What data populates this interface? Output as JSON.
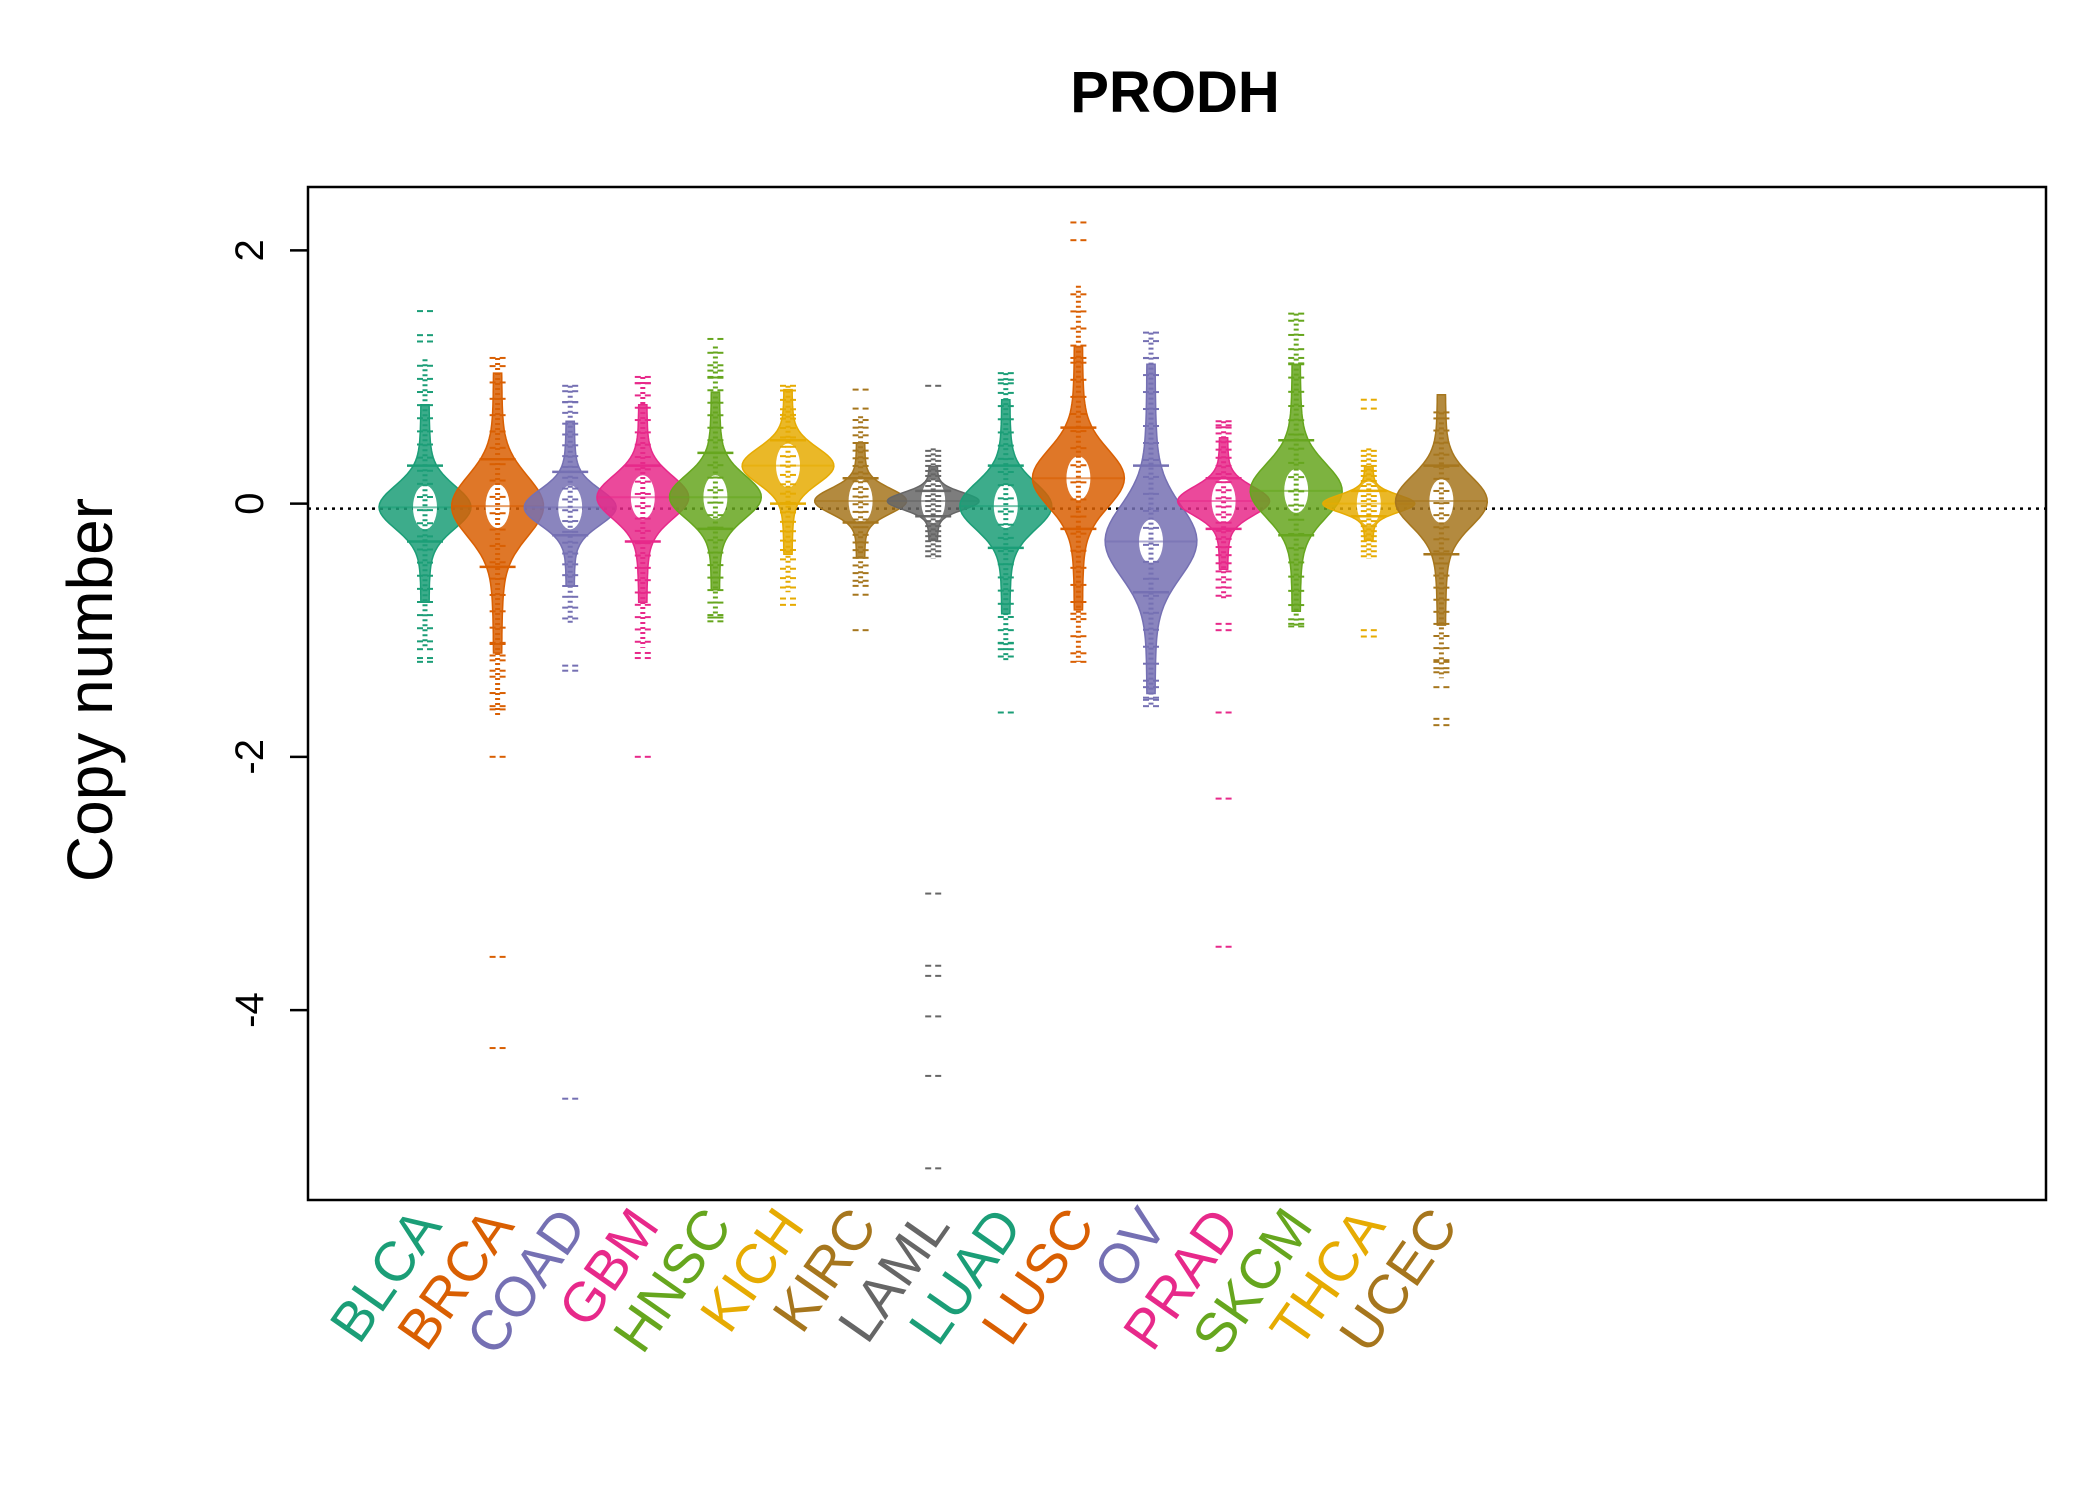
{
  "chart_data": {
    "type": "beanplot",
    "title": "PRODH",
    "xlabel": "",
    "ylabel": "Copy number",
    "ylim": [
      -5.5,
      2.5
    ],
    "yticks": [
      2,
      0,
      -2,
      -4
    ],
    "reference_line": -0.04,
    "categories": [
      {
        "name": "BLCA",
        "color": "#1B9E77",
        "median": -0.03,
        "q1": -0.3,
        "q3": 0.3,
        "min": -1.25,
        "max": 1.52,
        "outliers": [
          1.52,
          1.33,
          1.28,
          -1.15,
          -1.22,
          -1.25
        ]
      },
      {
        "name": "BRCA",
        "color": "#D95F02",
        "median": -0.02,
        "q1": -0.5,
        "q3": 0.35,
        "min": -4.3,
        "max": 1.15,
        "outliers": [
          1.15,
          -1.1,
          -1.2,
          -1.32,
          -1.6,
          -2.0,
          -3.58,
          -4.3
        ]
      },
      {
        "name": "COAD",
        "color": "#7570B3",
        "median": -0.03,
        "q1": -0.25,
        "q3": 0.25,
        "min": -4.7,
        "max": 0.93,
        "outliers": [
          0.93,
          0.8,
          -1.28,
          -1.32,
          -4.7
        ]
      },
      {
        "name": "GBM",
        "color": "#E7298A",
        "median": 0.05,
        "q1": -0.3,
        "q3": 0.3,
        "min": -2.0,
        "max": 1.0,
        "outliers": [
          1.0,
          0.95,
          -1.18,
          -1.22,
          -2.0
        ]
      },
      {
        "name": "HNSC",
        "color": "#66A61E",
        "median": 0.05,
        "q1": -0.2,
        "q3": 0.4,
        "min": -0.93,
        "max": 1.3,
        "outliers": [
          1.3,
          1.05,
          1.0,
          -0.9,
          -0.93
        ]
      },
      {
        "name": "KICH",
        "color": "#E6AB02",
        "median": 0.3,
        "q1": 0.0,
        "q3": 0.5,
        "min": -0.8,
        "max": 0.93,
        "outliers": [
          0.93,
          0.7,
          -0.75,
          -0.8
        ]
      },
      {
        "name": "KIRC",
        "color": "#A6761D",
        "median": 0.02,
        "q1": -0.15,
        "q3": 0.2,
        "min": -1.0,
        "max": 0.9,
        "outliers": [
          0.9,
          0.75,
          -0.65,
          -0.72,
          -1.0
        ]
      },
      {
        "name": "LAML",
        "color": "#666666",
        "median": 0.02,
        "q1": -0.1,
        "q3": 0.1,
        "min": -5.25,
        "max": 0.93,
        "outliers": [
          0.93,
          -3.08,
          -3.65,
          -3.73,
          -4.05,
          -4.52,
          -5.25
        ]
      },
      {
        "name": "LUAD",
        "color": "#1B9E77",
        "median": -0.02,
        "q1": -0.35,
        "q3": 0.3,
        "min": -1.65,
        "max": 1.03,
        "outliers": [
          1.03,
          0.95,
          -1.1,
          -1.15,
          -1.65
        ]
      },
      {
        "name": "LUSC",
        "color": "#D95F02",
        "median": 0.2,
        "q1": -0.2,
        "q3": 0.6,
        "min": -1.25,
        "max": 2.22,
        "outliers": [
          2.22,
          2.08,
          1.15,
          -0.87,
          -1.25
        ]
      },
      {
        "name": "OV",
        "color": "#7570B3",
        "median": -0.3,
        "q1": -0.7,
        "q3": 0.3,
        "min": -1.6,
        "max": 1.35,
        "outliers": [
          1.35,
          1.15,
          -1.45,
          -1.55,
          -1.6
        ]
      },
      {
        "name": "PRAD",
        "color": "#E7298A",
        "median": 0.02,
        "q1": -0.2,
        "q3": 0.2,
        "min": -3.5,
        "max": 0.65,
        "outliers": [
          0.65,
          0.6,
          -0.95,
          -1.0,
          -1.65,
          -2.33,
          -3.5
        ]
      },
      {
        "name": "SKCM",
        "color": "#66A61E",
        "median": 0.1,
        "q1": -0.25,
        "q3": 0.5,
        "min": -0.97,
        "max": 1.5,
        "outliers": [
          1.5,
          1.15,
          1.1,
          -0.95,
          -0.97
        ]
      },
      {
        "name": "THCA",
        "color": "#E6AB02",
        "median": 0.0,
        "q1": -0.1,
        "q3": 0.1,
        "min": -1.05,
        "max": 0.82,
        "outliers": [
          0.82,
          0.75,
          -1.0,
          -1.05
        ]
      },
      {
        "name": "UCEC",
        "color": "#A6761D",
        "median": 0.02,
        "q1": -0.4,
        "q3": 0.3,
        "min": -1.75,
        "max": 0.72,
        "outliers": [
          0.72,
          -1.25,
          -1.3,
          -1.45,
          -1.7,
          -1.75
        ]
      }
    ]
  }
}
